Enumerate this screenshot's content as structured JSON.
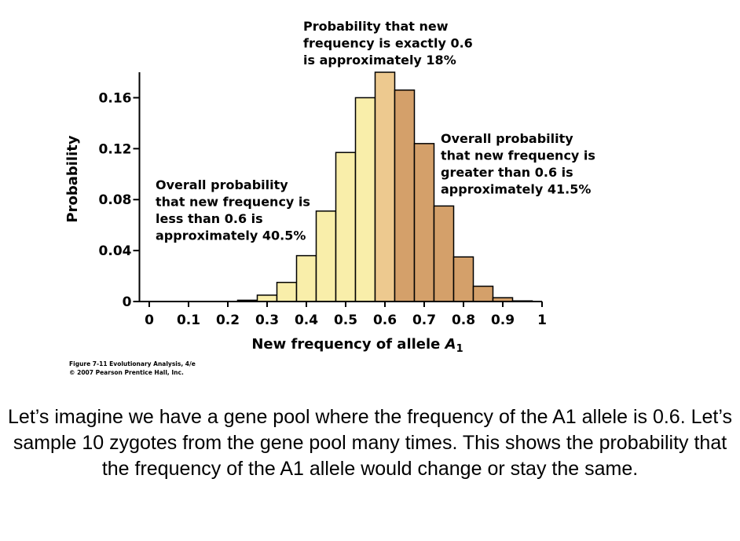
{
  "chart_data": {
    "type": "bar",
    "x": [
      0,
      0.05,
      0.1,
      0.15,
      0.2,
      0.25,
      0.3,
      0.35,
      0.4,
      0.45,
      0.5,
      0.55,
      0.6,
      0.65,
      0.7,
      0.75,
      0.8,
      0.85,
      0.9,
      0.95,
      1
    ],
    "values": [
      0,
      0,
      0,
      0,
      0,
      0.001,
      0.005,
      0.015,
      0.036,
      0.071,
      0.117,
      0.16,
      0.18,
      0.166,
      0.124,
      0.075,
      0.035,
      0.012,
      0.003,
      0.0005,
      0
    ],
    "colors": [
      "#f9eeaa",
      "#f9eeaa",
      "#f9eeaa",
      "#f9eeaa",
      "#f9eeaa",
      "#f9eeaa",
      "#f9eeaa",
      "#f9eeaa",
      "#f9eeaa",
      "#f9eeaa",
      "#f9eeaa",
      "#f9eeaa",
      "#edc98f",
      "#d4a06a",
      "#d4a06a",
      "#d4a06a",
      "#d4a06a",
      "#d4a06a",
      "#d4a06a",
      "#d4a06a",
      "#d4a06a"
    ],
    "bar_width": 0.05,
    "xlim": [
      -0.025,
      1.0
    ],
    "xticks": [
      0,
      0.1,
      0.2,
      0.3,
      0.4,
      0.5,
      0.6,
      0.7,
      0.8,
      0.9,
      1
    ],
    "ylim": [
      0,
      0.18
    ],
    "yticks": [
      0,
      0.04,
      0.08,
      0.12,
      0.16
    ],
    "ylabel": "Probability",
    "xlabel": {
      "text": "New frequency of allele",
      "var": "A",
      "sub": "1"
    },
    "annotations": [
      {
        "lines": [
          "Probability that new",
          "frequency is exactly 0.6",
          "is approximately 18%"
        ]
      },
      {
        "lines": [
          "Overall probability",
          "that new frequency is",
          "less than 0.6 is",
          "approximately 40.5%"
        ]
      },
      {
        "lines": [
          "Overall probability",
          "that new frequency is",
          "greater than 0.6 is",
          "approximately 41.5%"
        ]
      }
    ],
    "credit": [
      "Figure 7-11 Evolutionary Analysis, 4/e",
      "© 2007 Pearson Prentice Hall, Inc."
    ]
  },
  "caption": "Let’s imagine we have a gene pool where the frequency of the A1 allele is 0.6. Let’s sample 10 zygotes from the gene pool many times. This shows the probability that the frequency of the A1 allele would change or stay the same."
}
